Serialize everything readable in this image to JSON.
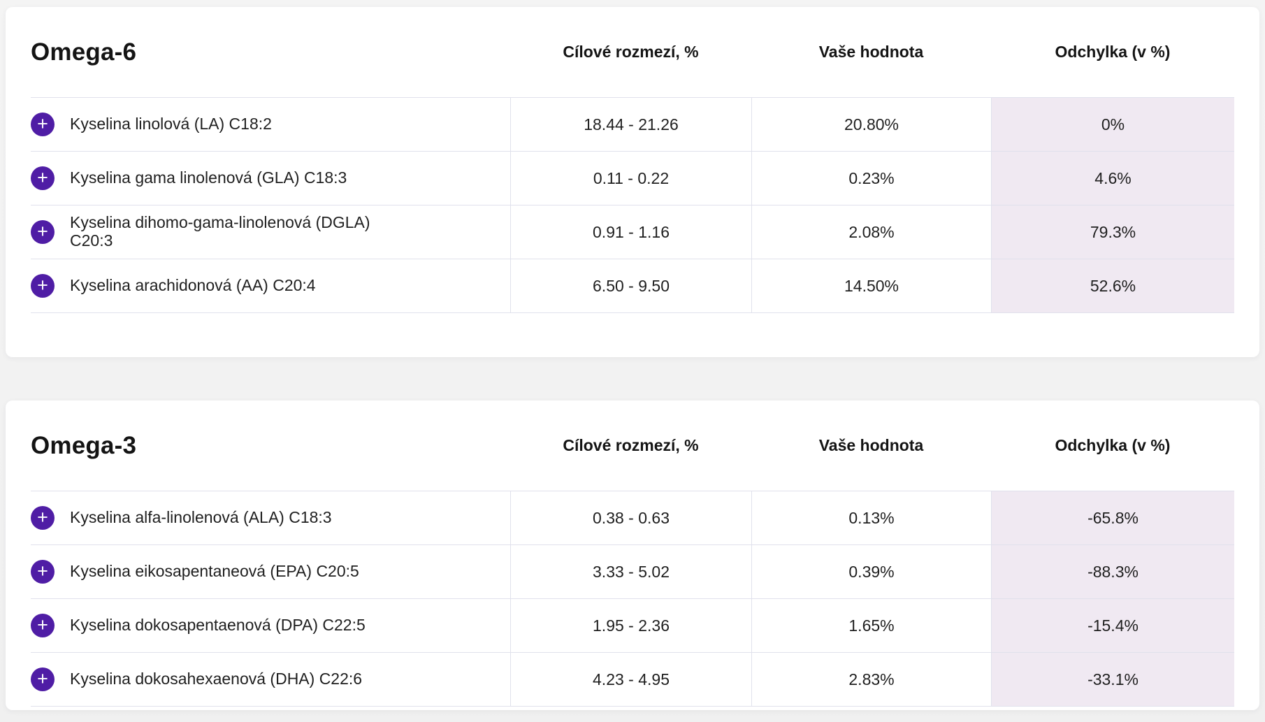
{
  "columns": {
    "target_range": "Cílové rozmezí, %",
    "your_value": "Vaše hodnota",
    "deviation": "Odchylka (v %)"
  },
  "colors": {
    "accent_purple": "#4f1da5",
    "deviation_column_bg": "#f0e9f2",
    "divider": "#e0e1ec"
  },
  "icons": {
    "expand_row": "plus-icon",
    "plus_glyph": "+"
  },
  "sections": [
    {
      "title": "Omega-6",
      "rows": [
        {
          "name": "Kyselina linolová (LA) C18:2",
          "range": "18.44 - 21.26",
          "value": "20.80%",
          "deviation": "0%"
        },
        {
          "name": "Kyselina gama linolenová (GLA) C18:3",
          "range": "0.11 - 0.22",
          "value": "0.23%",
          "deviation": "4.6%"
        },
        {
          "name": "Kyselina dihomo-gama-linolenová (DGLA) C20:3",
          "range": "0.91 - 1.16",
          "value": "2.08%",
          "deviation": "79.3%"
        },
        {
          "name": "Kyselina arachidonová (AA) C20:4",
          "range": "6.50 - 9.50",
          "value": "14.50%",
          "deviation": "52.6%"
        }
      ]
    },
    {
      "title": "Omega-3",
      "rows": [
        {
          "name": "Kyselina alfa-linolenová (ALA) C18:3",
          "range": "0.38 - 0.63",
          "value": "0.13%",
          "deviation": "-65.8%"
        },
        {
          "name": "Kyselina eikosapentaneová (EPA) C20:5",
          "range": "3.33 - 5.02",
          "value": "0.39%",
          "deviation": "-88.3%"
        },
        {
          "name": "Kyselina dokosapentaenová (DPA) C22:5",
          "range": "1.95 - 2.36",
          "value": "1.65%",
          "deviation": "-15.4%"
        },
        {
          "name": "Kyselina dokosahexaenová (DHA) C22:6",
          "range": "4.23 - 4.95",
          "value": "2.83%",
          "deviation": "-33.1%"
        }
      ]
    }
  ]
}
